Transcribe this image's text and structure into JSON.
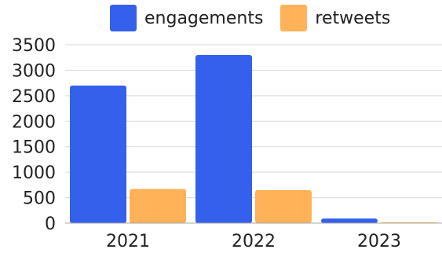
{
  "chart_data": {
    "type": "bar",
    "categories": [
      "2021",
      "2022",
      "2023"
    ],
    "series": [
      {
        "name": "engagements",
        "values": [
          2700,
          3300,
          90
        ],
        "color": "#3560ec"
      },
      {
        "name": "retweets",
        "values": [
          670,
          650,
          20
        ],
        "color": "#ffb257"
      }
    ],
    "yticks": [
      "0",
      "500",
      "1000",
      "1500",
      "2000",
      "2500",
      "3000",
      "3500"
    ],
    "ylim": [
      0,
      3500
    ],
    "grid": true,
    "legend_position": "top"
  }
}
